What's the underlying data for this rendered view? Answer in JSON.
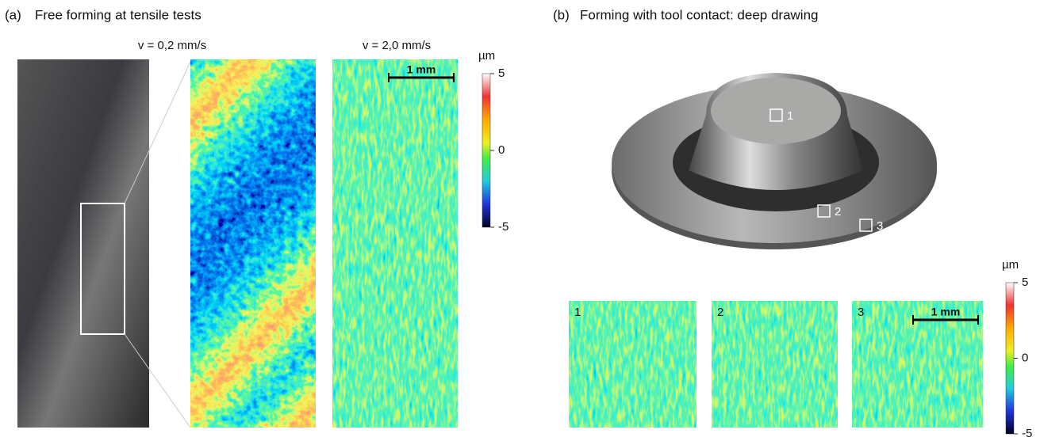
{
  "panel_a": {
    "label": "(a)",
    "title": "Free forming at tensile tests",
    "captions": [
      "v = 0,2 mm/s",
      "v = 2,0 mm/s"
    ],
    "scale_bar": "1 mm",
    "colorbar": {
      "unit": "µm",
      "ticks": [
        5,
        0,
        -5
      ]
    }
  },
  "panel_b": {
    "label": "(b)",
    "title": "Forming with tool contact: deep drawing",
    "markers": [
      "1",
      "2",
      "3"
    ],
    "insets": [
      "1",
      "2",
      "3"
    ],
    "scale_bar": "1 mm",
    "colorbar": {
      "unit": "µm",
      "ticks": [
        5,
        0,
        -5
      ]
    }
  }
}
